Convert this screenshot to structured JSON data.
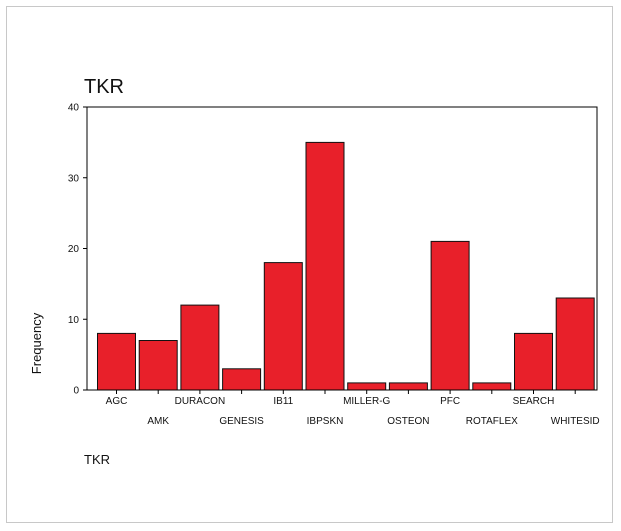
{
  "chart_data": {
    "type": "bar",
    "title": "TKR",
    "xlabel": "TKR",
    "ylabel": "Frequency",
    "categories": [
      "AGC",
      "AMK",
      "DURACON",
      "GENESIS",
      "IB11",
      "IBPSKN",
      "MILLER-G",
      "OSTEON",
      "PFC",
      "ROTAFLEX",
      "SEARCH",
      "WHITESID"
    ],
    "values": [
      8,
      7,
      12,
      3,
      18,
      35,
      1,
      1,
      21,
      1,
      8,
      13
    ],
    "yticks": [
      0,
      10,
      20,
      30,
      40
    ],
    "ylim": [
      0,
      40
    ],
    "bar_color": "#e8202a",
    "grid": false,
    "legend": false
  }
}
